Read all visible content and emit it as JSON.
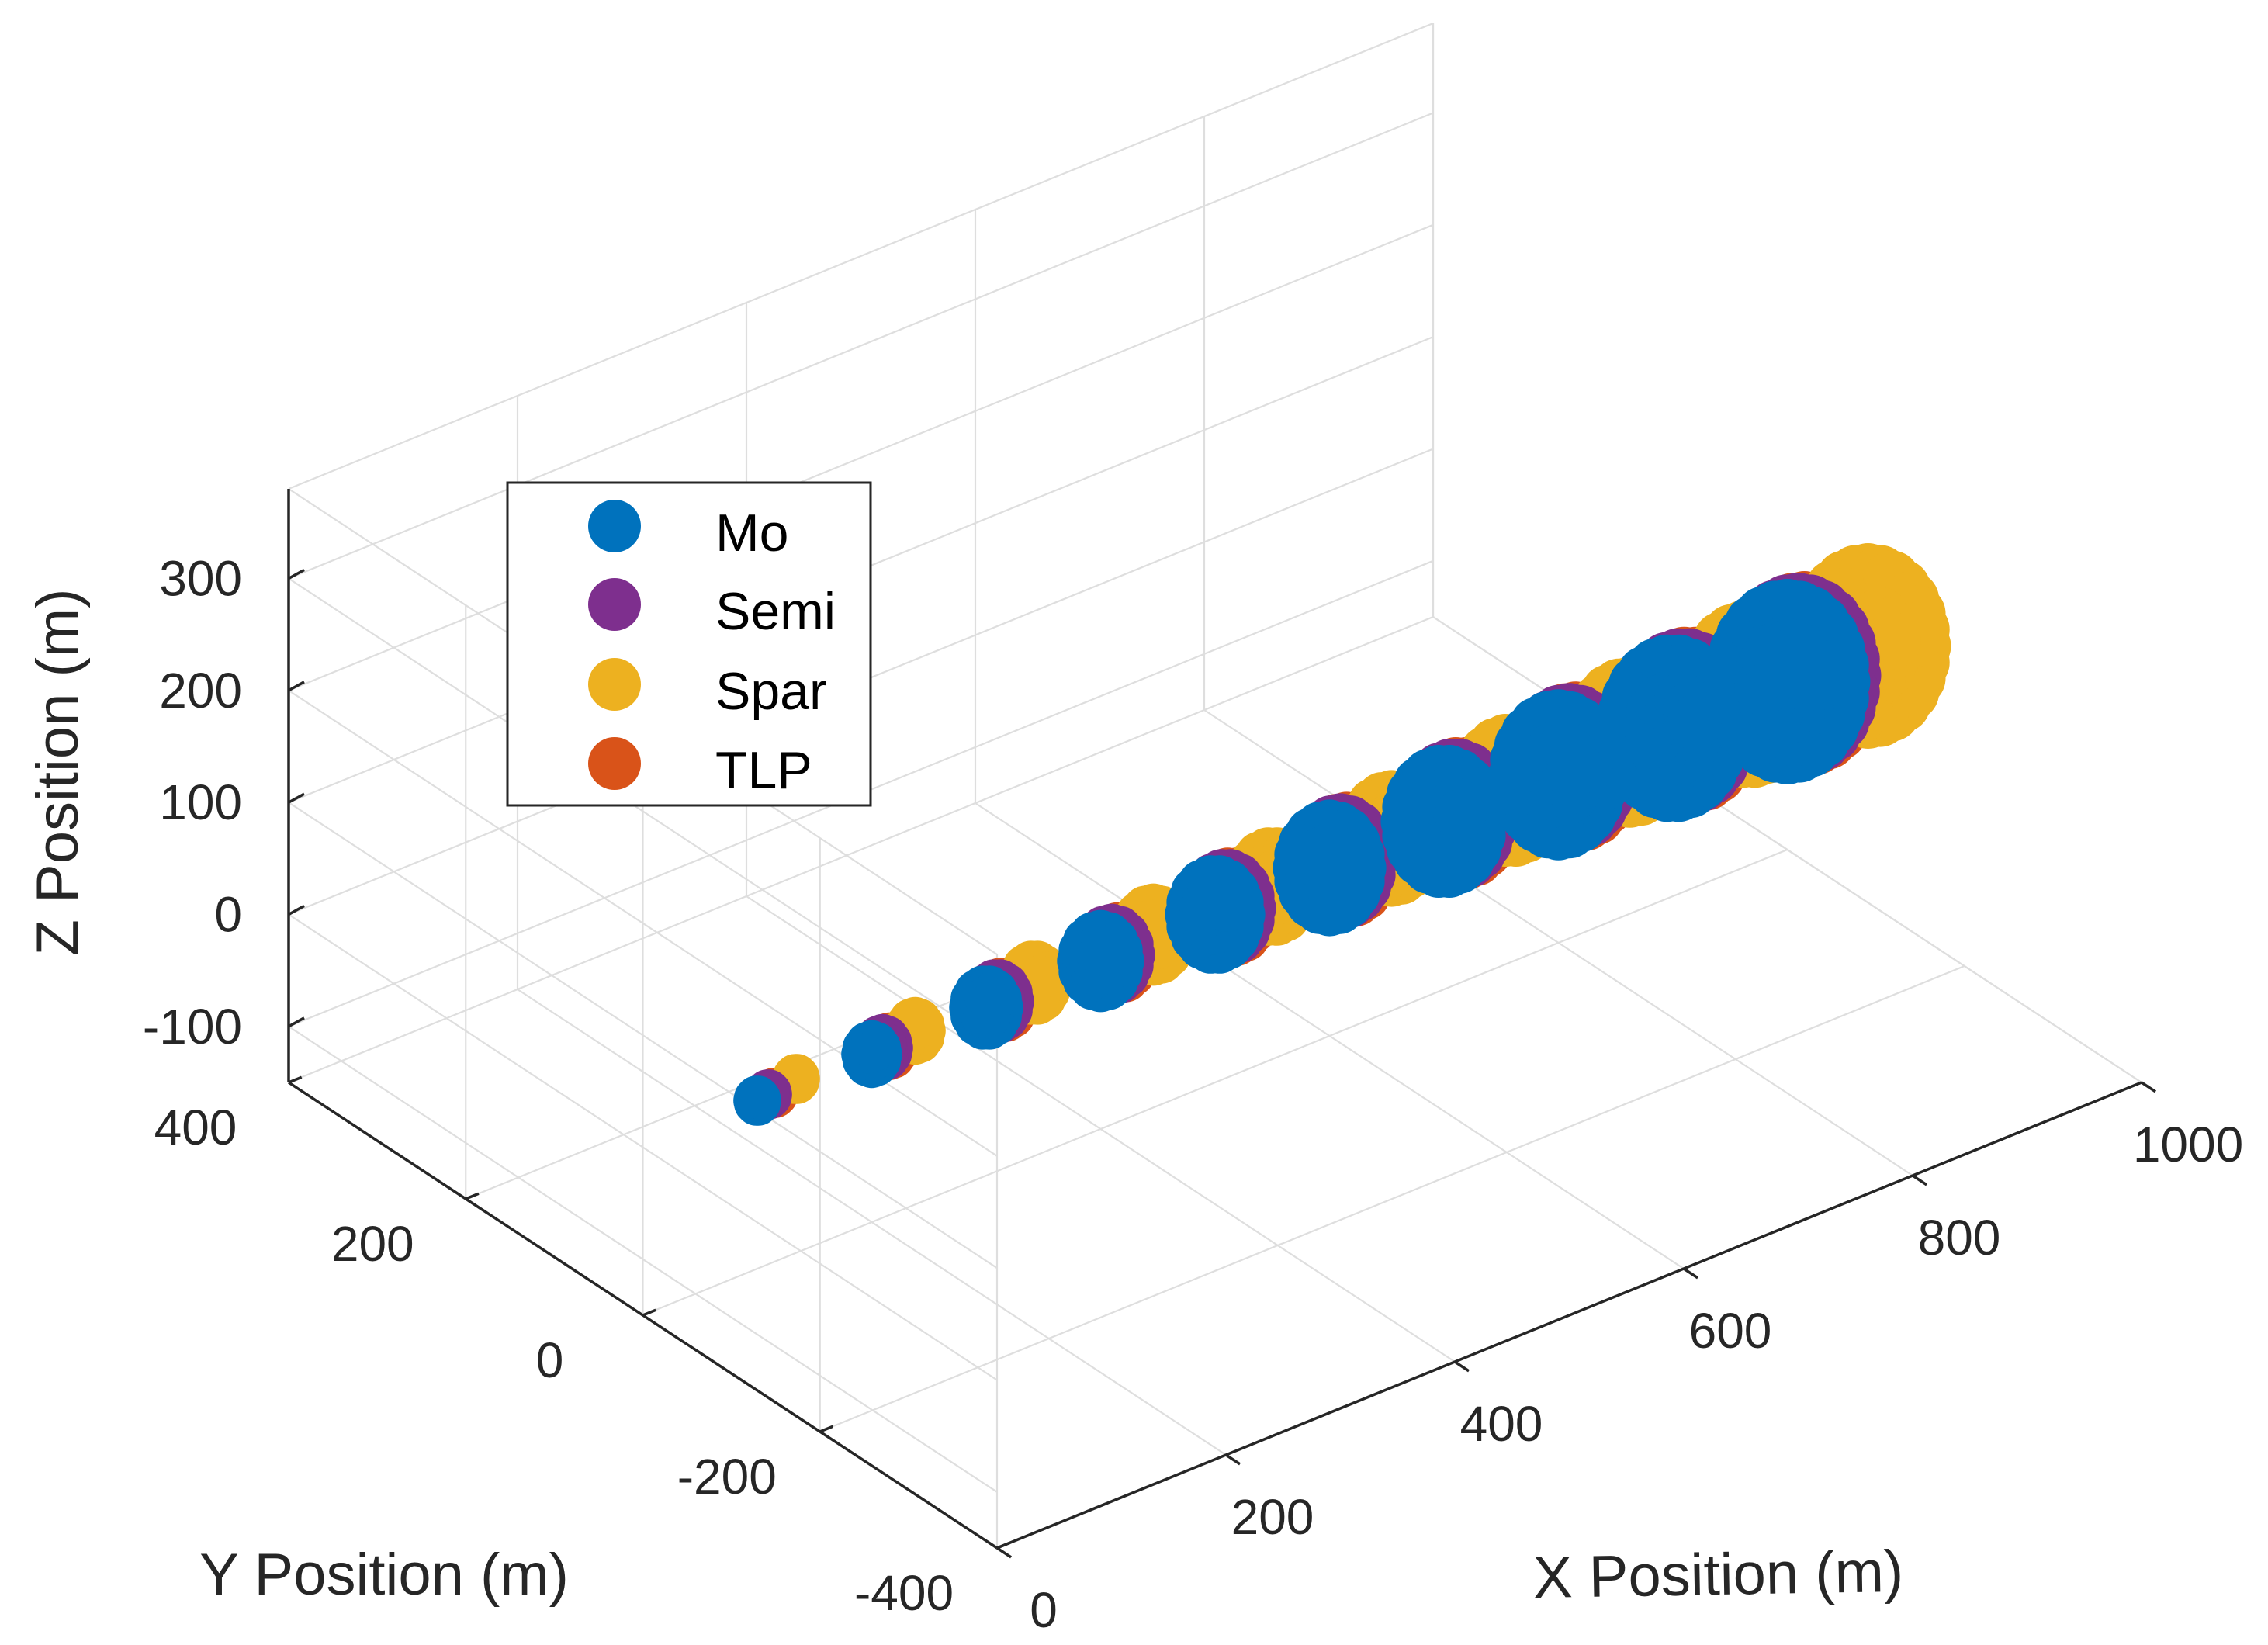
{
  "chart_data": {
    "type": "scatter3d",
    "title": "",
    "xlabel": "X Position (m)",
    "ylabel": "Y Position (m)",
    "zlabel": "Z Position (m)",
    "xlim": [
      0,
      1000
    ],
    "ylim": [
      -400,
      400
    ],
    "zlim": [
      -150,
      380
    ],
    "xticks": [
      "0",
      "200",
      "400",
      "600",
      "800",
      "1000"
    ],
    "yticks": [
      "-400",
      "-200",
      "0",
      "200",
      "400"
    ],
    "zticks": [
      "-100",
      "0",
      "100",
      "200",
      "300"
    ],
    "grid": true,
    "legend_location": "top-left",
    "series": [
      {
        "name": "Mo",
        "color": "#0072BD"
      },
      {
        "name": "Semi",
        "color": "#7E2F8E"
      },
      {
        "name": "Spar",
        "color": "#EDB120"
      },
      {
        "name": "TLP",
        "color": "#D95319"
      }
    ],
    "clusters": [
      {
        "x": 100,
        "y": 0,
        "z": 0,
        "radius": 10
      },
      {
        "x": 200,
        "y": 0,
        "z": 0,
        "radius": 25
      },
      {
        "x": 300,
        "y": 0,
        "z": 0,
        "radius": 40
      },
      {
        "x": 400,
        "y": 0,
        "z": 0,
        "radius": 55
      },
      {
        "x": 500,
        "y": 0,
        "z": 0,
        "radius": 70
      },
      {
        "x": 600,
        "y": 0,
        "z": 0,
        "radius": 85
      },
      {
        "x": 700,
        "y": 0,
        "z": 0,
        "radius": 100
      },
      {
        "x": 800,
        "y": 0,
        "z": 0,
        "radius": 115
      },
      {
        "x": 900,
        "y": 0,
        "z": 0,
        "radius": 130
      },
      {
        "x": 1000,
        "y": 0,
        "z": 0,
        "radius": 145
      }
    ]
  }
}
